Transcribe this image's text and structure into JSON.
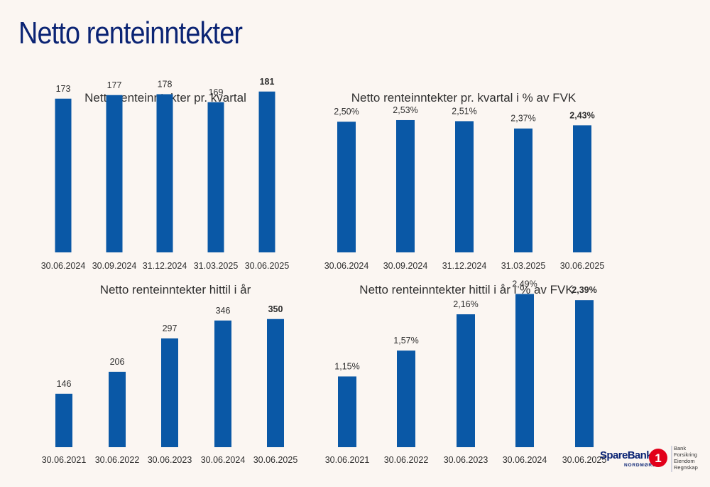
{
  "page": {
    "title": "Netto renteinntekter"
  },
  "chart_data": [
    {
      "type": "bar",
      "title": "Netto renteinntekter pr. kvartal",
      "categories": [
        "30.06.2024",
        "30.09.2024",
        "31.12.2024",
        "31.03.2025",
        "30.06.2025"
      ],
      "values": [
        173,
        177,
        178,
        169,
        181
      ],
      "labels": [
        "173",
        "177",
        "178",
        "169",
        "181"
      ],
      "highlight_index": 4,
      "ylim": [
        0,
        200
      ],
      "grid": false,
      "color": "#0a58a6"
    },
    {
      "type": "bar",
      "title": "Netto renteinntekter pr. kvartal i % av FVK",
      "categories": [
        "30.06.2024",
        "30.09.2024",
        "31.12.2024",
        "31.03.2025",
        "30.06.2025"
      ],
      "values": [
        2.5,
        2.53,
        2.51,
        2.37,
        2.43
      ],
      "labels": [
        "2,50%",
        "2,53%",
        "2,51%",
        "2,37%",
        "2,43%"
      ],
      "highlight_index": 4,
      "ylim": [
        0,
        3.4
      ],
      "grid": false,
      "color": "#0a58a6"
    },
    {
      "type": "bar",
      "title": "Netto renteinntekter hittil i år",
      "categories": [
        "30.06.2021",
        "30.06.2022",
        "30.06.2023",
        "30.06.2024",
        "30.06.2025"
      ],
      "values": [
        146,
        206,
        297,
        346,
        350
      ],
      "labels": [
        "146",
        "206",
        "297",
        "346",
        "350"
      ],
      "highlight_index": 4,
      "ylim": [
        0,
        400
      ],
      "grid": false,
      "color": "#0a58a6"
    },
    {
      "type": "bar",
      "title": "Netto renteinntekter hittil i år i % av FVK",
      "categories": [
        "30.06.2021",
        "30.06.2022",
        "30.06.2023",
        "30.06.2024",
        "30.06.2025"
      ],
      "values": [
        1.15,
        1.57,
        2.16,
        2.49,
        2.39
      ],
      "labels": [
        "1,15%",
        "1,57%",
        "2,16%",
        "2,49%",
        "2,39%"
      ],
      "highlight_index": 4,
      "ylim": [
        0,
        2.6
      ],
      "grid": false,
      "color": "#0a58a6"
    }
  ],
  "logo": {
    "name": "SpareBank",
    "mark": "1",
    "region": "NORDMØRE",
    "services": [
      "Bank",
      "Forsikring",
      "Eiendom",
      "Regnskap"
    ],
    "brand_color": "#0b2474",
    "accent_color": "#e2001a"
  }
}
